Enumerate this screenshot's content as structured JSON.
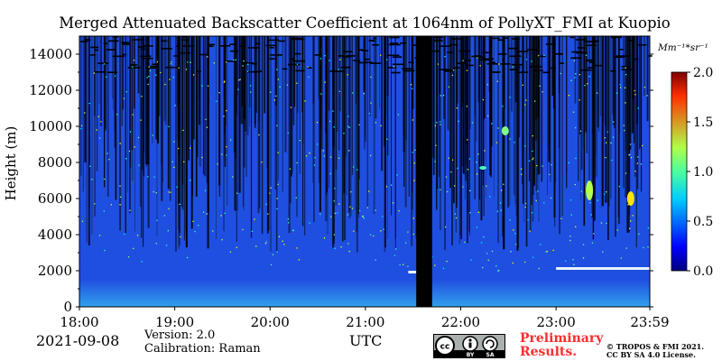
{
  "title": "Merged Attenuated Backscatter Coefficient at 1064nm of PollyXT_FMI at Kuopio",
  "date": "2021-09-08",
  "version_text": "Version: 2.0",
  "calibration_text": "Calibration: Raman",
  "xaxis_label": "UTC",
  "yaxis_label": "Height (m)",
  "colorbar": {
    "unit_label": "Mm⁻¹*sr⁻¹",
    "range": [
      0.0,
      2.0
    ],
    "tick_labels": [
      "2.0",
      "1.5",
      "1.0",
      "0.5",
      "0.0"
    ],
    "colormap": "jet"
  },
  "preliminary_text": "Preliminary\nResults.",
  "copyright_text": "© TROPOS & FMI 2021.\nCC BY SA 4.0 License.",
  "license_badge": {
    "icons": [
      "cc-icon",
      "attribution-icon",
      "share-alike-icon"
    ],
    "labels": [
      "BY",
      "SA"
    ]
  },
  "colors": {
    "background_signal": "#1f4fe0",
    "no_data": "#000000",
    "low_level_signal": "#35b6f0"
  },
  "chart_data": {
    "type": "heatmap",
    "title": "Merged Attenuated Backscatter Coefficient at 1064nm of PollyXT_FMI at Kuopio",
    "xlabel": "UTC",
    "ylabel": "Height (m)",
    "x_range": [
      "18:00",
      "23:59"
    ],
    "x_ticks": [
      "18:00",
      "19:00",
      "20:00",
      "21:00",
      "22:00",
      "23:00",
      "23:59"
    ],
    "y_range": [
      0,
      15000
    ],
    "y_ticks": [
      0,
      2000,
      4000,
      6000,
      8000,
      10000,
      12000,
      14000
    ],
    "z_range": [
      0.0,
      2.0
    ],
    "z_unit": "Mm⁻¹*sr⁻¹",
    "data_gaps": [
      {
        "start": "21:32",
        "end": "21:42"
      }
    ],
    "features": [
      {
        "type": "aerosol_layer_top",
        "start": "21:27",
        "end": "21:32",
        "height": 1950,
        "value": 0.6
      },
      {
        "type": "aerosol_layer_top",
        "start": "23:00",
        "end": "23:59",
        "height": 2150,
        "value": 0.6
      },
      {
        "type": "cloud",
        "time": "23:21",
        "height_min": 5900,
        "height_max": 7000,
        "value": 1.1
      },
      {
        "type": "cloud",
        "time": "23:47",
        "height_min": 5600,
        "height_max": 6400,
        "value": 1.3
      },
      {
        "type": "cloud",
        "time": "22:28",
        "height_min": 9500,
        "height_max": 10000,
        "value": 1.0
      },
      {
        "type": "cloud",
        "time": "22:14",
        "height_min": 7600,
        "height_max": 7800,
        "value": 0.9
      }
    ]
  }
}
